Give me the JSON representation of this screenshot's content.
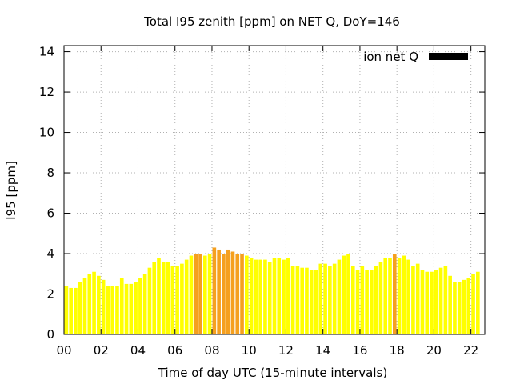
{
  "chart_data": {
    "type": "bar",
    "title": "Total I95 zenith [ppm] on NET Q, DoY=146",
    "xlabel": "Time of day UTC (15-minute intervals)",
    "ylabel": "I95 [ppm]",
    "xlim": [
      0,
      22.75
    ],
    "ylim": [
      0,
      14.3
    ],
    "x_ticks": [
      "00",
      "02",
      "04",
      "06",
      "08",
      "10",
      "12",
      "14",
      "16",
      "18",
      "20",
      "22"
    ],
    "y_ticks": [
      "0",
      "2",
      "4",
      "6",
      "8",
      "10",
      "12",
      "14"
    ],
    "grid": true,
    "legend": {
      "position": "top-right",
      "entries": [
        {
          "label": "ion net Q",
          "color": "#000000"
        }
      ]
    },
    "colors": {
      "normal": "#ffff00",
      "moderate": "#ffd21e",
      "elevated": "#f5a01e"
    },
    "interval_hours": 0.25,
    "series": [
      {
        "start_hour": 0,
        "values": [
          2.4,
          2.3,
          2.3,
          2.6,
          2.8,
          3.0,
          3.1,
          2.9,
          2.7,
          2.4,
          2.4,
          2.4,
          2.8,
          2.5,
          2.5,
          2.6,
          2.8,
          3.0,
          3.3,
          3.6,
          3.8,
          3.6,
          3.6,
          3.4,
          3.4,
          3.5,
          3.7,
          3.9,
          4.0,
          4.0,
          3.9,
          4.0,
          4.3,
          4.2,
          4.0,
          4.2,
          4.1,
          4.0,
          4.0,
          3.9,
          3.8,
          3.7,
          3.7,
          3.7,
          3.6,
          3.8,
          3.8,
          3.7,
          3.8,
          3.4,
          3.4,
          3.3,
          3.3,
          3.2,
          3.2,
          3.5,
          3.5,
          3.4,
          3.5,
          3.7,
          3.9,
          4.0,
          3.4,
          3.2,
          3.4,
          3.2,
          3.2,
          3.4,
          3.6,
          3.8,
          3.8,
          4.0,
          3.8,
          3.9,
          3.7,
          3.4,
          3.5,
          3.2,
          3.1,
          3.1,
          3.2,
          3.3,
          3.4,
          2.9,
          2.6,
          2.6,
          2.7,
          2.8,
          3.0,
          3.1
        ],
        "levels": [
          0,
          0,
          0,
          0,
          0,
          0,
          0,
          0,
          0,
          0,
          0,
          0,
          0,
          0,
          0,
          0,
          0,
          0,
          0,
          0,
          0,
          0,
          0,
          0,
          0,
          0,
          0,
          0,
          2,
          2,
          0,
          0,
          2,
          2,
          2,
          2,
          2,
          2,
          2,
          0,
          0,
          0,
          0,
          0,
          0,
          0,
          0,
          0,
          0,
          0,
          0,
          0,
          0,
          0,
          0,
          0,
          0,
          0,
          0,
          0,
          0,
          0,
          0,
          0,
          0,
          0,
          0,
          0,
          0,
          0,
          0,
          2,
          0,
          0,
          0,
          0,
          0,
          0,
          0,
          0,
          0,
          0,
          0,
          0,
          0,
          0,
          0,
          0,
          0,
          0
        ]
      }
    ]
  }
}
